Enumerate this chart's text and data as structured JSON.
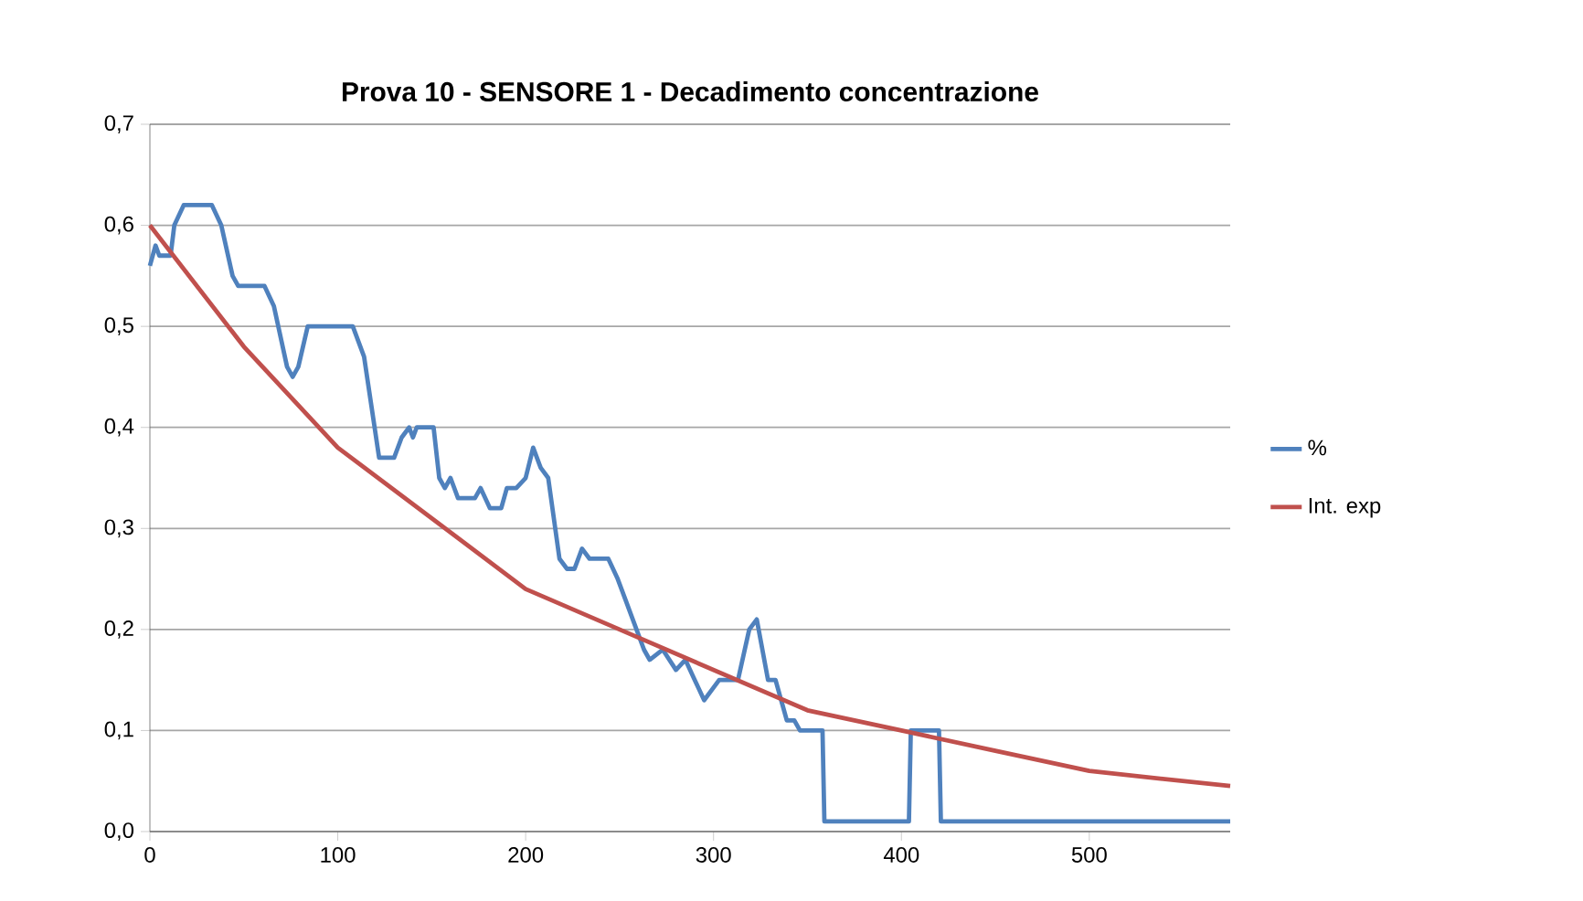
{
  "chart_data": {
    "type": "line",
    "title": "Prova 10 - SENSORE 1 - Decadimento concentrazione",
    "xlim": [
      0,
      575
    ],
    "xticks": [
      0,
      100,
      200,
      300,
      400,
      500
    ],
    "ylim": [
      0,
      0.7
    ],
    "yticks": [
      {
        "value": 0,
        "label": "0,0"
      },
      {
        "value": 0.1,
        "label": "0,1"
      },
      {
        "value": 0.2,
        "label": "0,2"
      },
      {
        "value": 0.3,
        "label": "0,3"
      },
      {
        "value": 0.4,
        "label": "0,4"
      },
      {
        "value": 0.5,
        "label": "0,5"
      },
      {
        "value": 0.6,
        "label": "0,6"
      },
      {
        "value": 0.7,
        "label": "0,7"
      }
    ],
    "grid": "y",
    "legend": "right",
    "marker": "none",
    "line_style": "solid",
    "series": [
      {
        "name": "%",
        "color": "#4f81bd",
        "x": [
          0,
          3,
          5,
          11,
          13,
          18,
          30,
          33,
          38,
          44,
          47,
          61,
          66,
          73,
          76,
          79,
          84,
          89,
          108,
          114,
          118,
          122,
          130,
          134,
          138,
          140,
          142,
          151,
          154,
          157,
          160,
          164,
          173,
          176,
          181,
          187,
          190,
          195,
          200,
          204,
          208,
          212,
          218,
          222,
          226,
          230,
          234,
          244,
          249,
          253,
          259,
          263,
          266,
          273,
          280,
          285,
          290,
          295,
          303,
          310,
          313,
          319,
          323,
          329,
          333,
          336,
          339,
          343,
          346,
          358,
          359,
          404,
          405,
          420,
          421,
          575
        ],
        "values": [
          0.56,
          0.58,
          0.57,
          0.57,
          0.6,
          0.62,
          0.62,
          0.62,
          0.6,
          0.55,
          0.54,
          0.54,
          0.52,
          0.46,
          0.45,
          0.46,
          0.5,
          0.5,
          0.5,
          0.47,
          0.42,
          0.37,
          0.37,
          0.39,
          0.4,
          0.39,
          0.4,
          0.4,
          0.35,
          0.34,
          0.35,
          0.33,
          0.33,
          0.34,
          0.32,
          0.32,
          0.34,
          0.34,
          0.35,
          0.38,
          0.36,
          0.35,
          0.27,
          0.26,
          0.26,
          0.28,
          0.27,
          0.27,
          0.25,
          0.23,
          0.2,
          0.18,
          0.17,
          0.18,
          0.16,
          0.17,
          0.15,
          0.13,
          0.15,
          0.15,
          0.15,
          0.2,
          0.21,
          0.15,
          0.15,
          0.13,
          0.11,
          0.11,
          0.1,
          0.1,
          0.01,
          0.01,
          0.1,
          0.1,
          0.01,
          0.01
        ]
      },
      {
        "name": "Int. exp",
        "color": "#c0504d",
        "x": [
          0,
          50,
          100,
          150,
          200,
          250,
          300,
          350,
          400,
          450,
          500,
          575
        ],
        "values": [
          0.6,
          0.48,
          0.38,
          0.31,
          0.24,
          0.2,
          0.16,
          0.12,
          0.1,
          0.08,
          0.06,
          0.045
        ]
      }
    ]
  }
}
